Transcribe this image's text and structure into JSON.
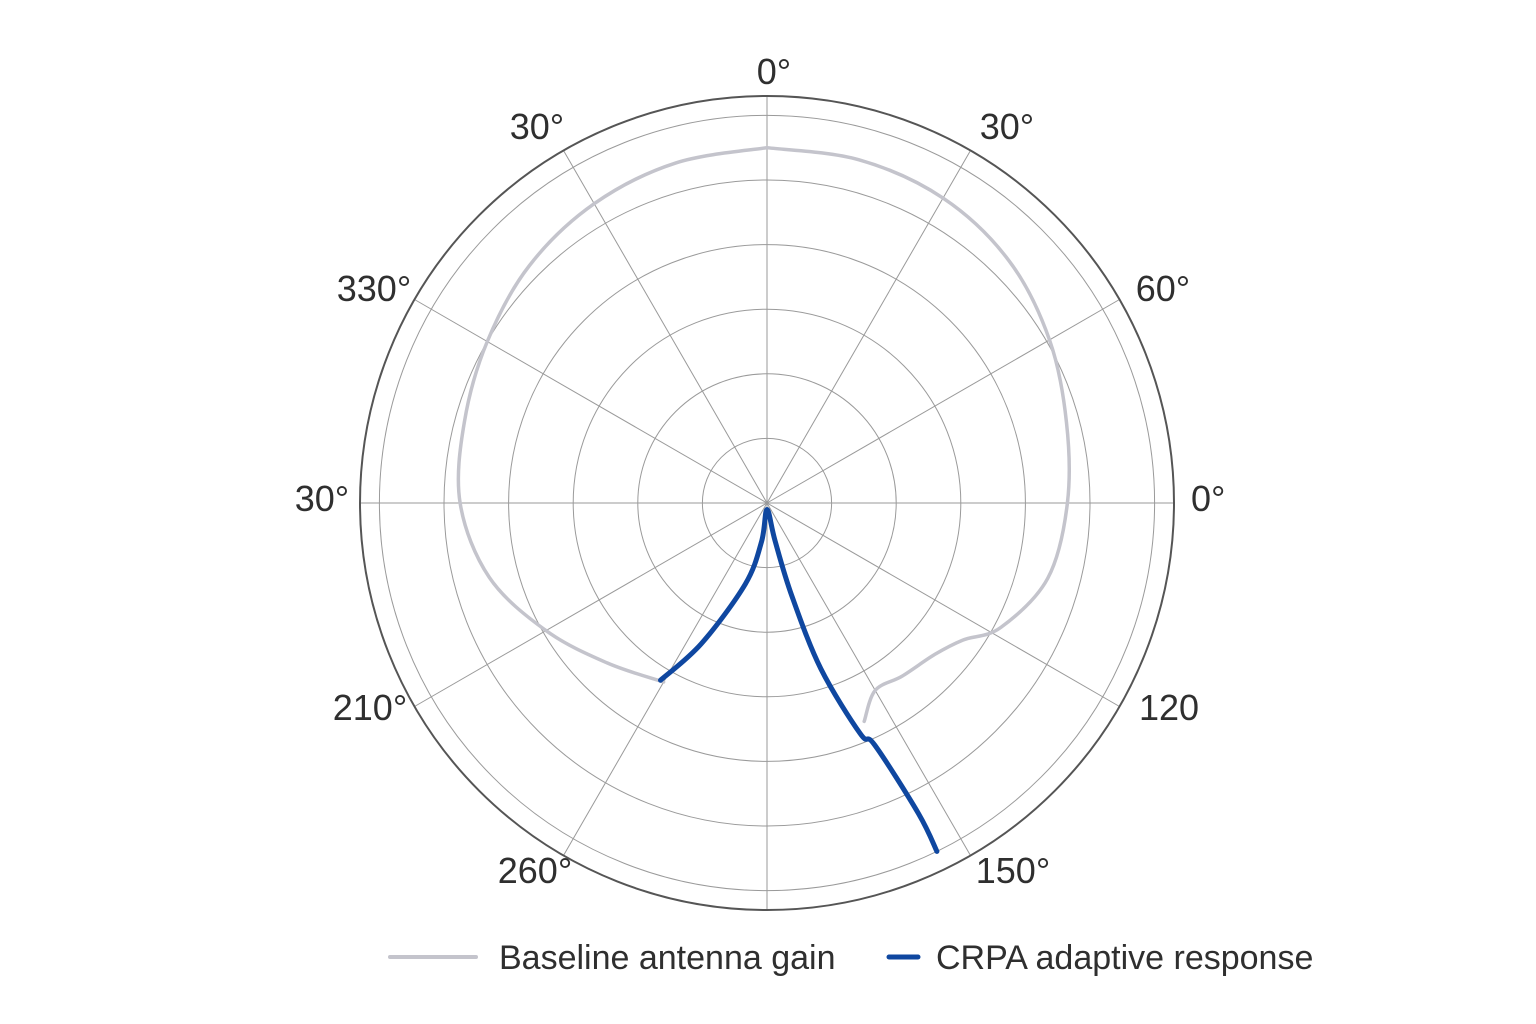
{
  "chart_data": {
    "type": "polar",
    "angle_tick_labels": [
      "0°",
      "30°",
      "60°",
      "0°",
      "120",
      "150°",
      "260°",
      "210°",
      "30°",
      "330°",
      "30°"
    ],
    "radial_ticks": [
      1,
      2,
      3,
      4,
      5,
      6
    ],
    "r_max": 6.3,
    "grid": true,
    "legend_position": "bottom",
    "colors": {
      "grid": "#9a9a9a",
      "outer": "#555555",
      "baseline": "#c4c4cc",
      "crpa": "#0f47a0"
    },
    "series": [
      {
        "name": "Baseline antenna gain",
        "color": "#c4c4cc",
        "points": [
          {
            "theta": 0,
            "r": 5.5
          },
          {
            "theta": 15,
            "r": 5.5
          },
          {
            "theta": 30,
            "r": 5.45
          },
          {
            "theta": 45,
            "r": 5.3
          },
          {
            "theta": 60,
            "r": 5.05
          },
          {
            "theta": 75,
            "r": 4.8
          },
          {
            "theta": 90,
            "r": 4.65
          },
          {
            "theta": 105,
            "r": 4.5
          },
          {
            "theta": 118,
            "r": 4.1
          },
          {
            "theta": 125,
            "r": 3.7
          },
          {
            "theta": 132,
            "r": 3.5
          },
          {
            "theta": 142,
            "r": 3.4
          },
          {
            "theta": 150,
            "r": 3.35
          },
          {
            "theta": 156,
            "r": 3.7
          }
        ]
      },
      {
        "name": "Baseline antenna gain",
        "color": "#c4c4cc",
        "points": [
          {
            "theta": 210,
            "r": 3.2
          },
          {
            "theta": 225,
            "r": 3.5
          },
          {
            "theta": 240,
            "r": 3.95
          },
          {
            "theta": 255,
            "r": 4.45
          },
          {
            "theta": 270,
            "r": 4.75
          },
          {
            "theta": 285,
            "r": 4.85
          },
          {
            "theta": 300,
            "r": 5.0
          },
          {
            "theta": 315,
            "r": 5.2
          },
          {
            "theta": 330,
            "r": 5.35
          },
          {
            "theta": 345,
            "r": 5.45
          },
          {
            "theta": 360,
            "r": 5.5
          }
        ]
      },
      {
        "name": "CRPA adaptive response",
        "color": "#0f47a0",
        "points": [
          {
            "theta": 211,
            "r": 3.2
          },
          {
            "theta": 205,
            "r": 2.4
          },
          {
            "theta": 195,
            "r": 1.3
          },
          {
            "theta": 188,
            "r": 0.6
          },
          {
            "theta": 180,
            "r": 0.1
          },
          {
            "theta": 168,
            "r": 0.6
          },
          {
            "theta": 165,
            "r": 1.5
          },
          {
            "theta": 162,
            "r": 2.7
          },
          {
            "theta": 158,
            "r": 3.85
          },
          {
            "theta": 156,
            "r": 4.1
          },
          {
            "theta": 154,
            "r": 5.35
          },
          {
            "theta": 154,
            "r": 6.0
          }
        ]
      }
    ],
    "legend": [
      {
        "label": "Baseline antenna gain",
        "color": "#c4c4cc"
      },
      {
        "label": "CRPA adaptive response",
        "color": "#0f47a0"
      }
    ]
  }
}
